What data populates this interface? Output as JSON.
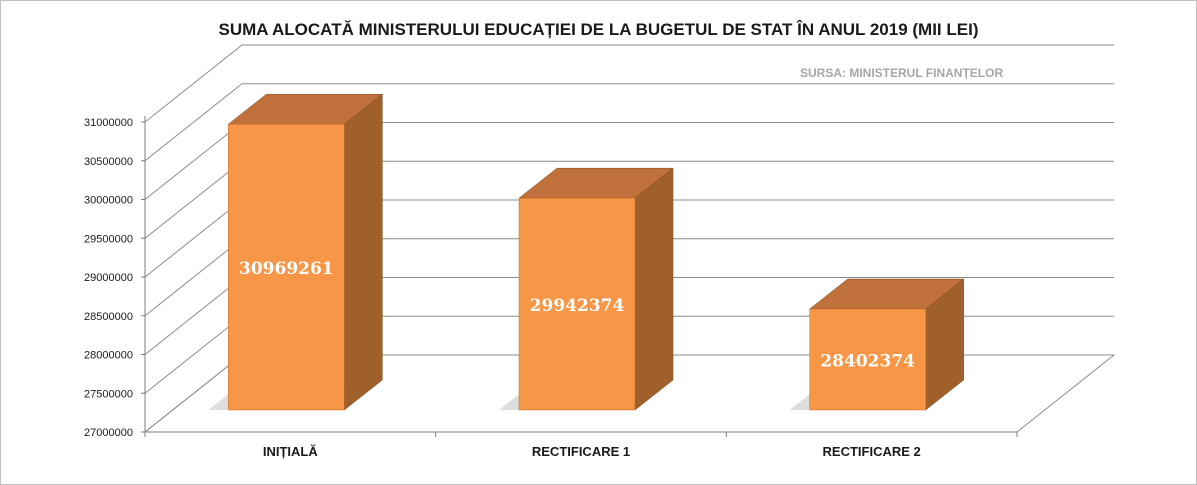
{
  "chart_data": {
    "type": "bar",
    "title": "SUMA ALOCATĂ MINISTERULUI EDUCAȚIEI DE LA BUGETUL DE STAT ÎN ANUL 2019 (MII LEI)",
    "source_note": "SURSA: MINISTERUL FINANȚELOR",
    "categories": [
      "INIȚIALĂ",
      "RECTIFICARE 1",
      "RECTIFICARE 2"
    ],
    "values": [
      30969261,
      29942374,
      28402374
    ],
    "data_labels": [
      "30969261",
      "29942374",
      "28402374"
    ],
    "ylim": [
      27000000,
      31000000
    ],
    "yticks": [
      27000000,
      27500000,
      28000000,
      28500000,
      29000000,
      29500000,
      30000000,
      30500000,
      31000000
    ],
    "ytick_labels": [
      "27000000",
      "27500000",
      "28000000",
      "28500000",
      "29000000",
      "29500000",
      "30000000",
      "30500000",
      "31000000"
    ],
    "xlabel": "",
    "ylabel": "",
    "grid": true,
    "legend": false,
    "style": "3d-bar",
    "colors": {
      "bar_front": "#F79646",
      "bar_top": "#C0703A",
      "bar_side": "#A0602C",
      "gridline": "#8c8c8c",
      "axis": "#7f7f7f",
      "data_label": "#ffffff",
      "shadow": "#c8c8c8"
    }
  }
}
